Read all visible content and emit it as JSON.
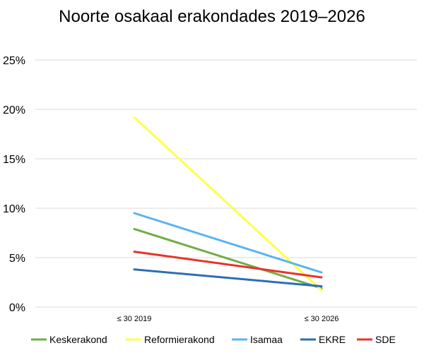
{
  "chart_data": {
    "type": "line",
    "title": "Noorte osakaal erakondades 2019–2026",
    "categories": [
      "≤ 30 2019",
      "≤ 30 2026"
    ],
    "ylim": [
      0,
      25
    ],
    "yticks": [
      "0%",
      "5%",
      "10%",
      "15%",
      "20%",
      "25%"
    ],
    "ytick_values": [
      0,
      5,
      10,
      15,
      20,
      25
    ],
    "grid": true,
    "legend_position": "bottom",
    "series": [
      {
        "name": "Keskerakond",
        "values": [
          7.9,
          1.9
        ],
        "color": "#70AD47"
      },
      {
        "name": "Reformierakond",
        "values": [
          19.2,
          1.7
        ],
        "color": "#FFFF47"
      },
      {
        "name": "Isamaa",
        "values": [
          9.5,
          3.5
        ],
        "color": "#5BB3F0"
      },
      {
        "name": "EKRE",
        "values": [
          3.8,
          2.1
        ],
        "color": "#2E6DB4"
      },
      {
        "name": "SDE",
        "values": [
          5.6,
          3.0
        ],
        "color": "#E8332A"
      }
    ]
  }
}
